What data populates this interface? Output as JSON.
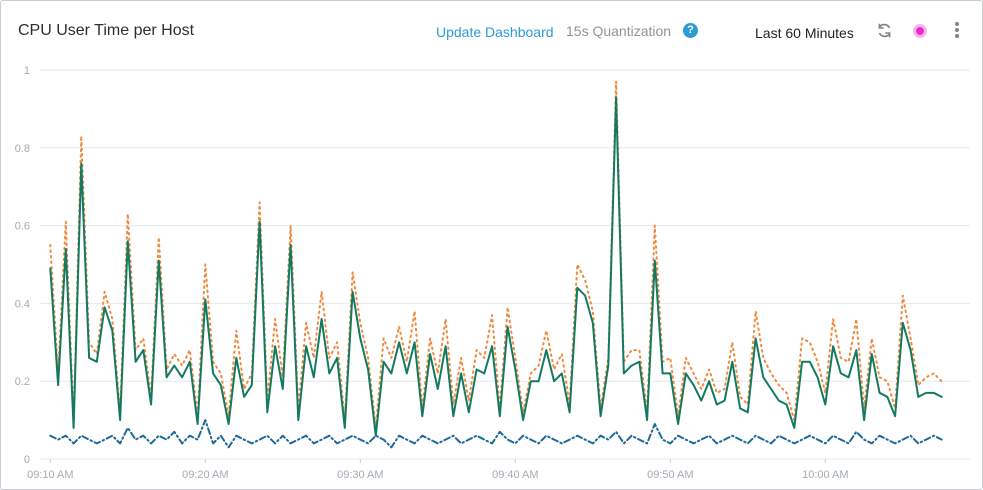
{
  "header": {
    "title": "CPU User Time per Host",
    "update_label": "Update Dashboard",
    "quantization": "15s Quantization",
    "help_glyph": "?",
    "time_range": "Last 60 Minutes"
  },
  "icons": {
    "help": "question-circle-icon",
    "refresh": "refresh-icon",
    "live": "live-status-icon",
    "menu": "kebab-menu-icon"
  },
  "colors": {
    "link": "#2d9bd7",
    "series_solid": "#137a61",
    "series_dotted": "#f08a3e",
    "series_dashdot": "#1e6a96",
    "live": "#e82cc8"
  },
  "chart_data": {
    "type": "line",
    "title": "CPU User Time per Host",
    "xlabel": "",
    "ylabel": "",
    "ylim": [
      0,
      1
    ],
    "xlim": [
      "09:09:20",
      "10:09:20"
    ],
    "yticks": [
      "0",
      "0.2",
      "0.4",
      "0.6",
      "0.8",
      "1"
    ],
    "ytick_values": [
      0,
      0.2,
      0.4,
      0.6,
      0.8,
      1
    ],
    "xticks": [
      "09:10 AM",
      "09:20 AM",
      "09:30 AM",
      "09:40 AM",
      "09:50 AM",
      "10:00 AM"
    ],
    "xtick_values": [
      "09:10",
      "09:20",
      "09:30",
      "09:40",
      "09:50",
      "10:00"
    ],
    "grid": true,
    "legend": "none",
    "x_start": "09:10:00",
    "x_step": "00:00:30",
    "series": [
      {
        "style": "solid",
        "values": [
          0.49,
          0.19,
          0.54,
          0.08,
          0.76,
          0.26,
          0.25,
          0.39,
          0.33,
          0.1,
          0.56,
          0.25,
          0.28,
          0.14,
          0.51,
          0.21,
          0.24,
          0.21,
          0.25,
          0.09,
          0.41,
          0.22,
          0.19,
          0.09,
          0.26,
          0.16,
          0.19,
          0.61,
          0.12,
          0.29,
          0.18,
          0.55,
          0.1,
          0.29,
          0.21,
          0.36,
          0.22,
          0.26,
          0.08,
          0.43,
          0.31,
          0.23,
          0.06,
          0.25,
          0.22,
          0.3,
          0.22,
          0.3,
          0.11,
          0.27,
          0.18,
          0.29,
          0.11,
          0.22,
          0.12,
          0.23,
          0.22,
          0.29,
          0.11,
          0.34,
          0.23,
          0.1,
          0.2,
          0.2,
          0.28,
          0.2,
          0.22,
          0.12,
          0.44,
          0.42,
          0.35,
          0.11,
          0.24,
          0.93,
          0.22,
          0.24,
          0.25,
          0.1,
          0.51,
          0.22,
          0.22,
          0.09,
          0.22,
          0.19,
          0.15,
          0.2,
          0.14,
          0.15,
          0.25,
          0.13,
          0.12,
          0.31,
          0.21,
          0.18,
          0.15,
          0.14,
          0.08,
          0.25,
          0.25,
          0.21,
          0.14,
          0.29,
          0.22,
          0.21,
          0.28,
          0.1,
          0.27,
          0.17,
          0.16,
          0.11,
          0.35,
          0.28,
          0.16,
          0.17,
          0.17,
          0.16
        ]
      },
      {
        "style": "dotted",
        "values": [
          0.55,
          0.22,
          0.61,
          0.1,
          0.83,
          0.3,
          0.27,
          0.43,
          0.36,
          0.12,
          0.63,
          0.28,
          0.31,
          0.16,
          0.57,
          0.23,
          0.27,
          0.24,
          0.28,
          0.11,
          0.5,
          0.25,
          0.22,
          0.11,
          0.33,
          0.18,
          0.22,
          0.66,
          0.15,
          0.36,
          0.21,
          0.6,
          0.13,
          0.35,
          0.26,
          0.43,
          0.26,
          0.3,
          0.1,
          0.48,
          0.35,
          0.26,
          0.08,
          0.31,
          0.26,
          0.34,
          0.25,
          0.38,
          0.13,
          0.31,
          0.22,
          0.36,
          0.14,
          0.26,
          0.15,
          0.28,
          0.26,
          0.37,
          0.13,
          0.39,
          0.26,
          0.12,
          0.22,
          0.24,
          0.33,
          0.23,
          0.27,
          0.14,
          0.5,
          0.46,
          0.38,
          0.13,
          0.26,
          0.97,
          0.25,
          0.28,
          0.28,
          0.12,
          0.6,
          0.25,
          0.26,
          0.11,
          0.26,
          0.22,
          0.18,
          0.23,
          0.17,
          0.18,
          0.3,
          0.16,
          0.14,
          0.38,
          0.26,
          0.22,
          0.19,
          0.17,
          0.1,
          0.31,
          0.3,
          0.25,
          0.17,
          0.36,
          0.26,
          0.25,
          0.36,
          0.13,
          0.31,
          0.21,
          0.2,
          0.13,
          0.42,
          0.31,
          0.19,
          0.21,
          0.22,
          0.2
        ]
      },
      {
        "style": "dashdot",
        "values": [
          0.06,
          0.05,
          0.06,
          0.04,
          0.06,
          0.05,
          0.04,
          0.05,
          0.06,
          0.04,
          0.08,
          0.05,
          0.06,
          0.04,
          0.06,
          0.05,
          0.07,
          0.04,
          0.06,
          0.05,
          0.1,
          0.04,
          0.06,
          0.03,
          0.06,
          0.05,
          0.04,
          0.05,
          0.06,
          0.04,
          0.06,
          0.04,
          0.05,
          0.06,
          0.04,
          0.05,
          0.06,
          0.04,
          0.05,
          0.06,
          0.05,
          0.04,
          0.06,
          0.05,
          0.03,
          0.06,
          0.05,
          0.04,
          0.06,
          0.05,
          0.04,
          0.05,
          0.06,
          0.04,
          0.05,
          0.06,
          0.05,
          0.04,
          0.07,
          0.05,
          0.04,
          0.06,
          0.05,
          0.04,
          0.06,
          0.05,
          0.04,
          0.05,
          0.06,
          0.05,
          0.04,
          0.06,
          0.05,
          0.07,
          0.04,
          0.06,
          0.05,
          0.04,
          0.09,
          0.05,
          0.04,
          0.06,
          0.05,
          0.04,
          0.05,
          0.06,
          0.04,
          0.05,
          0.06,
          0.05,
          0.04,
          0.06,
          0.05,
          0.04,
          0.06,
          0.05,
          0.04,
          0.05,
          0.06,
          0.05,
          0.04,
          0.06,
          0.05,
          0.04,
          0.07,
          0.05,
          0.04,
          0.06,
          0.05,
          0.04,
          0.05,
          0.06,
          0.04,
          0.05,
          0.06,
          0.05
        ]
      }
    ]
  }
}
